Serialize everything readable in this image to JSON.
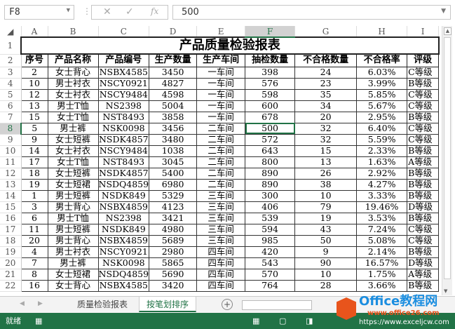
{
  "formula_bar": {
    "name_box": "F8",
    "cancel": "✕",
    "enter": "✓",
    "fx": "fx",
    "value": "500"
  },
  "columns": [
    "A",
    "B",
    "C",
    "D",
    "E",
    "F",
    "G",
    "H",
    "I"
  ],
  "selected": {
    "row": 8,
    "col": "F"
  },
  "sheet": {
    "title": "产品质量检验报表",
    "headers": [
      "序号",
      "产品名称",
      "产品编号",
      "生产数量",
      "生产车间",
      "抽检数量",
      "不合格数量",
      "不合格率",
      "评级"
    ],
    "rows": [
      [
        "2",
        "女士背心",
        "NSBX4585",
        "3450",
        "一车间",
        "398",
        "24",
        "6.03%",
        "C等级"
      ],
      [
        "10",
        "男士衬衣",
        "NSCY0921",
        "4827",
        "一车间",
        "576",
        "23",
        "3.99%",
        "B等级"
      ],
      [
        "12",
        "女士衬衣",
        "NSCY9484",
        "4598",
        "一车间",
        "598",
        "35",
        "5.85%",
        "C等级"
      ],
      [
        "13",
        "男士T恤",
        "NS2398",
        "5004",
        "一车间",
        "600",
        "34",
        "5.67%",
        "C等级"
      ],
      [
        "15",
        "女士T恤",
        "NST8493",
        "3858",
        "一车间",
        "678",
        "20",
        "2.95%",
        "B等级"
      ],
      [
        "5",
        "男士裤",
        "NSK0098",
        "3456",
        "二车间",
        "500",
        "32",
        "6.40%",
        "C等级"
      ],
      [
        "9",
        "女士短裤",
        "NSDK4857",
        "3480",
        "二车间",
        "572",
        "32",
        "5.59%",
        "C等级"
      ],
      [
        "14",
        "女士衬衣",
        "NSCY9484",
        "1038",
        "二车间",
        "643",
        "15",
        "2.33%",
        "B等级"
      ],
      [
        "17",
        "女士T恤",
        "NST8493",
        "3045",
        "二车间",
        "800",
        "13",
        "1.63%",
        "A等级"
      ],
      [
        "18",
        "女士短裤",
        "NSDK4857",
        "5400",
        "二车间",
        "890",
        "26",
        "2.92%",
        "B等级"
      ],
      [
        "19",
        "女士短裙",
        "NSDQ4859",
        "6980",
        "二车间",
        "890",
        "38",
        "4.27%",
        "B等级"
      ],
      [
        "1",
        "男士短裤",
        "NSDK849",
        "5329",
        "三车间",
        "300",
        "10",
        "3.33%",
        "B等级"
      ],
      [
        "3",
        "男士背心",
        "NSBX4859",
        "4123",
        "三车间",
        "406",
        "79",
        "19.46%",
        "D等级"
      ],
      [
        "6",
        "男士T恤",
        "NS2398",
        "3421",
        "三车间",
        "539",
        "19",
        "3.53%",
        "B等级"
      ],
      [
        "11",
        "男士短裤",
        "NSDK849",
        "4980",
        "三车间",
        "594",
        "43",
        "7.24%",
        "C等级"
      ],
      [
        "20",
        "男士背心",
        "NSBX4859",
        "5689",
        "三车间",
        "985",
        "50",
        "5.08%",
        "C等级"
      ],
      [
        "4",
        "男士衬衣",
        "NSCY0921",
        "2980",
        "四车间",
        "420",
        "9",
        "2.14%",
        "B等级"
      ],
      [
        "7",
        "男士裤",
        "NSK0098",
        "5865",
        "四车间",
        "543",
        "90",
        "16.57%",
        "D等级"
      ],
      [
        "8",
        "女士短裙",
        "NSDQ4859",
        "5690",
        "四车间",
        "570",
        "10",
        "1.75%",
        "A等级"
      ],
      [
        "16",
        "女士背心",
        "NSBX4585",
        "3420",
        "四车间",
        "764",
        "28",
        "3.66%",
        "B等级"
      ]
    ]
  },
  "tabs": [
    {
      "label": "质量检验报表",
      "active": false
    },
    {
      "label": "按笔划排序",
      "active": true
    }
  ],
  "status": {
    "ready": "就绪"
  },
  "watermark": {
    "brand": "Office教程网",
    "url1": "www.office26.com",
    "url2": "https://www.exceljcw.com"
  },
  "colors": {
    "accent": "#217346"
  }
}
